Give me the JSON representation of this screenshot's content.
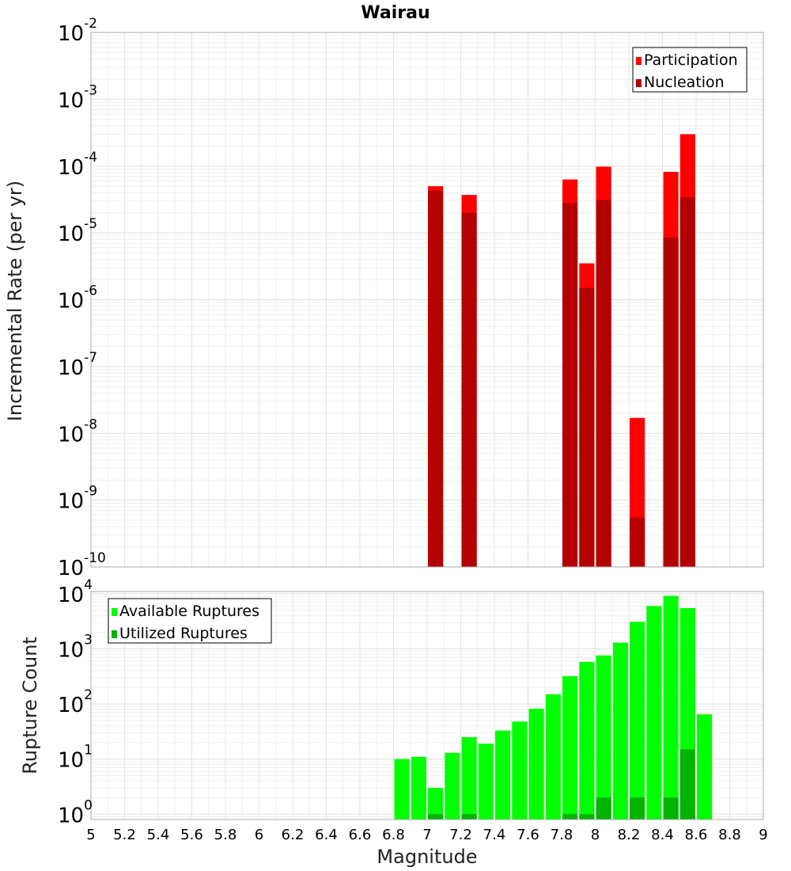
{
  "chart_data": [
    {
      "type": "bar",
      "title": "Wairau",
      "ylabel": "Incremental Rate (per yr)",
      "xlabel": "",
      "yscale": "log",
      "xlim": [
        5,
        9
      ],
      "ylim": [
        1e-10,
        0.01
      ],
      "y_tick_exponents": [
        -10,
        -9,
        -8,
        -7,
        -6,
        -5,
        -4,
        -3,
        -2
      ],
      "legend": {
        "placement": "top-right",
        "entries": [
          "Participation",
          "Nucleation"
        ]
      },
      "grid": true,
      "bar_width": 0.09,
      "colors": {
        "Participation": "#ff0000",
        "Nucleation": "#b30000"
      },
      "series": [
        {
          "name": "Participation",
          "x": [
            7.05,
            7.25,
            7.85,
            7.95,
            8.05,
            8.25,
            8.45,
            8.55
          ],
          "values": [
            5e-05,
            3.7e-05,
            6.3e-05,
            3.5e-06,
            9.8e-05,
            1.7e-08,
            8.2e-05,
            0.0003
          ]
        },
        {
          "name": "Nucleation",
          "x": [
            7.05,
            7.25,
            7.85,
            7.95,
            8.05,
            8.25,
            8.45,
            8.55
          ],
          "values": [
            4.3e-05,
            2e-05,
            2.8e-05,
            1.5e-06,
            3.1e-05,
            5.5e-10,
            8.5e-06,
            3.4e-05
          ]
        }
      ]
    },
    {
      "type": "bar",
      "title": "",
      "ylabel": "Rupture Count",
      "xlabel": "Magnitude",
      "yscale": "log",
      "xlim": [
        5,
        9
      ],
      "ylim": [
        0.8,
        11000
      ],
      "y_tick_exponents": [
        0,
        1,
        2,
        3,
        4
      ],
      "x_ticks": [
        "5",
        "5.2",
        "5.4",
        "5.6",
        "5.8",
        "6",
        "6.2",
        "6.4",
        "6.6",
        "6.8",
        "7",
        "7.2",
        "7.4",
        "7.6",
        "7.8",
        "8",
        "8.2",
        "8.4",
        "8.6",
        "8.8",
        "9"
      ],
      "legend": {
        "placement": "top-left",
        "entries": [
          "Available Ruptures",
          "Utilized Ruptures"
        ]
      },
      "grid": true,
      "bar_width": 0.09,
      "colors": {
        "Available Ruptures": "#00ff00",
        "Utilized Ruptures": "#00b300"
      },
      "series": [
        {
          "name": "Available Ruptures",
          "x": [
            6.85,
            6.95,
            7.05,
            7.15,
            7.25,
            7.35,
            7.45,
            7.55,
            7.65,
            7.75,
            7.85,
            7.95,
            8.05,
            8.15,
            8.25,
            8.35,
            8.45,
            8.55,
            8.65
          ],
          "values": [
            10,
            11,
            3,
            13,
            25,
            19,
            33,
            48,
            82,
            150,
            320,
            580,
            760,
            1300,
            3100,
            6000,
            9200,
            5500,
            65
          ]
        },
        {
          "name": "Utilized Ruptures",
          "x": [
            7.05,
            7.25,
            7.85,
            7.95,
            8.05,
            8.25,
            8.45,
            8.55
          ],
          "values": [
            1,
            1,
            1,
            1,
            2,
            2,
            2,
            15
          ]
        }
      ]
    }
  ]
}
